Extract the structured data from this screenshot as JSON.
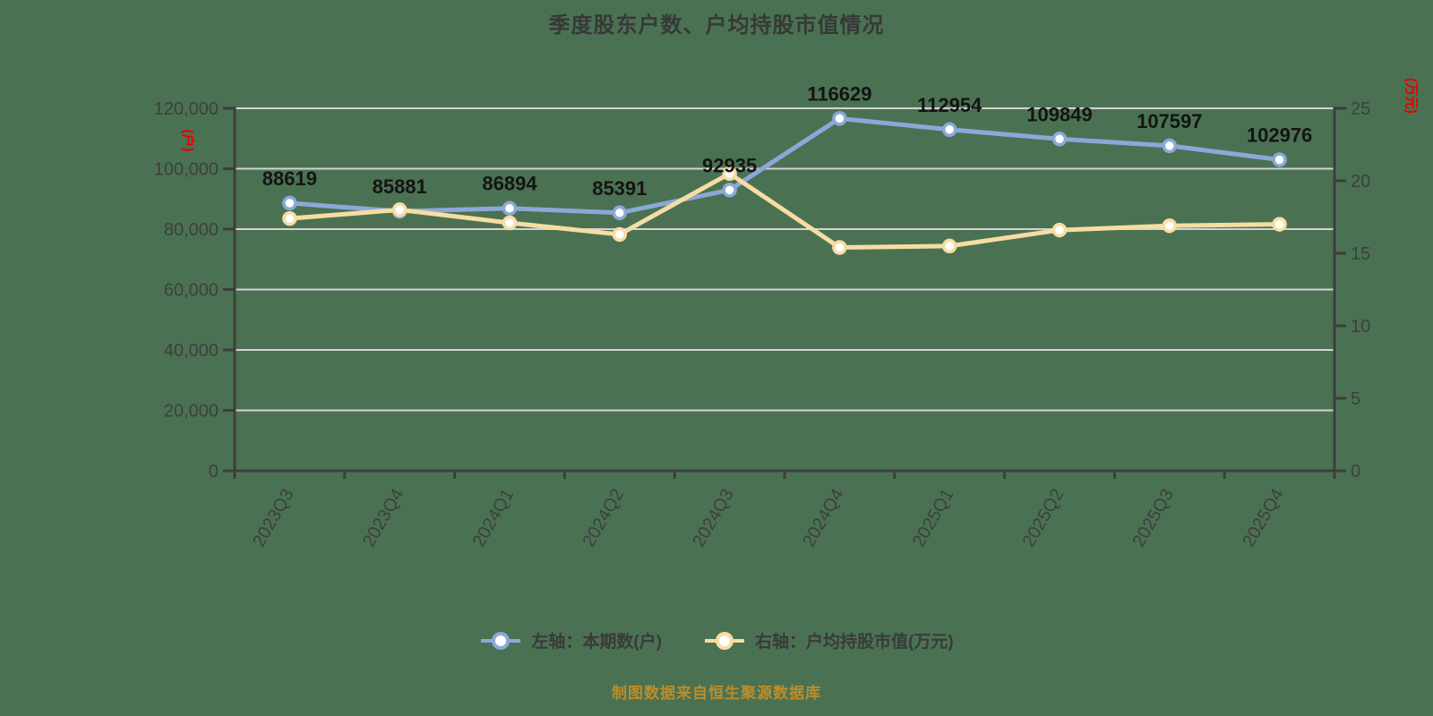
{
  "source_note": "制图数据来自恒生聚源数据库",
  "theme": {
    "bg": "#4a7252",
    "grid": "#d3d3d3",
    "axis": "#3d3d3d",
    "tick-text": "#3f3f3f",
    "title-text": "#383838",
    "data-label": "#141414",
    "axis-unit": "#e60000",
    "legend-text": "#3a3a3a",
    "footer-text": "#bd8d2a",
    "series-left": "#8ca8d8",
    "series-right": "#f7dda3"
  },
  "chart_data": {
    "type": "line",
    "title": "季度股东户数、户均持股市值情况",
    "categories": [
      "2023Q3",
      "2023Q4",
      "2024Q1",
      "2024Q2",
      "2024Q3",
      "2024Q4",
      "2025Q1",
      "2025Q2",
      "2025Q3",
      "2025Q4"
    ],
    "series": [
      {
        "name": "左轴：本期数(户)",
        "axis": "left",
        "color": "#8ca8d8",
        "values": [
          88619,
          85881,
          86894,
          85391,
          92935,
          116629,
          112954,
          109849,
          107597,
          102976
        ],
        "point_labels": [
          "88619",
          "85881",
          "86894",
          "85391",
          "92935",
          "116629",
          "112954",
          "109849",
          "107597",
          "102976"
        ]
      },
      {
        "name": "右轴：户均持股市值(万元)",
        "axis": "right",
        "color": "#f7dda3",
        "values": [
          17.4,
          18.0,
          17.1,
          16.3,
          20.5,
          15.4,
          15.5,
          16.6,
          16.9,
          17.0
        ],
        "point_labels": []
      }
    ],
    "left_axis": {
      "unit_label": "(户)",
      "min": 0,
      "max": 120000,
      "tick_step": 20000,
      "tick_labels": [
        "0",
        "20,000",
        "40,000",
        "60,000",
        "80,000",
        "100,000",
        "120,000"
      ]
    },
    "right_axis": {
      "unit_label": "(万元)",
      "min": 0,
      "max": 25,
      "tick_step": 5,
      "tick_labels": [
        "0",
        "5",
        "10",
        "15",
        "20",
        "25"
      ]
    },
    "grid": "horizontal",
    "legend_position": "bottom",
    "marker": "circle-open"
  }
}
